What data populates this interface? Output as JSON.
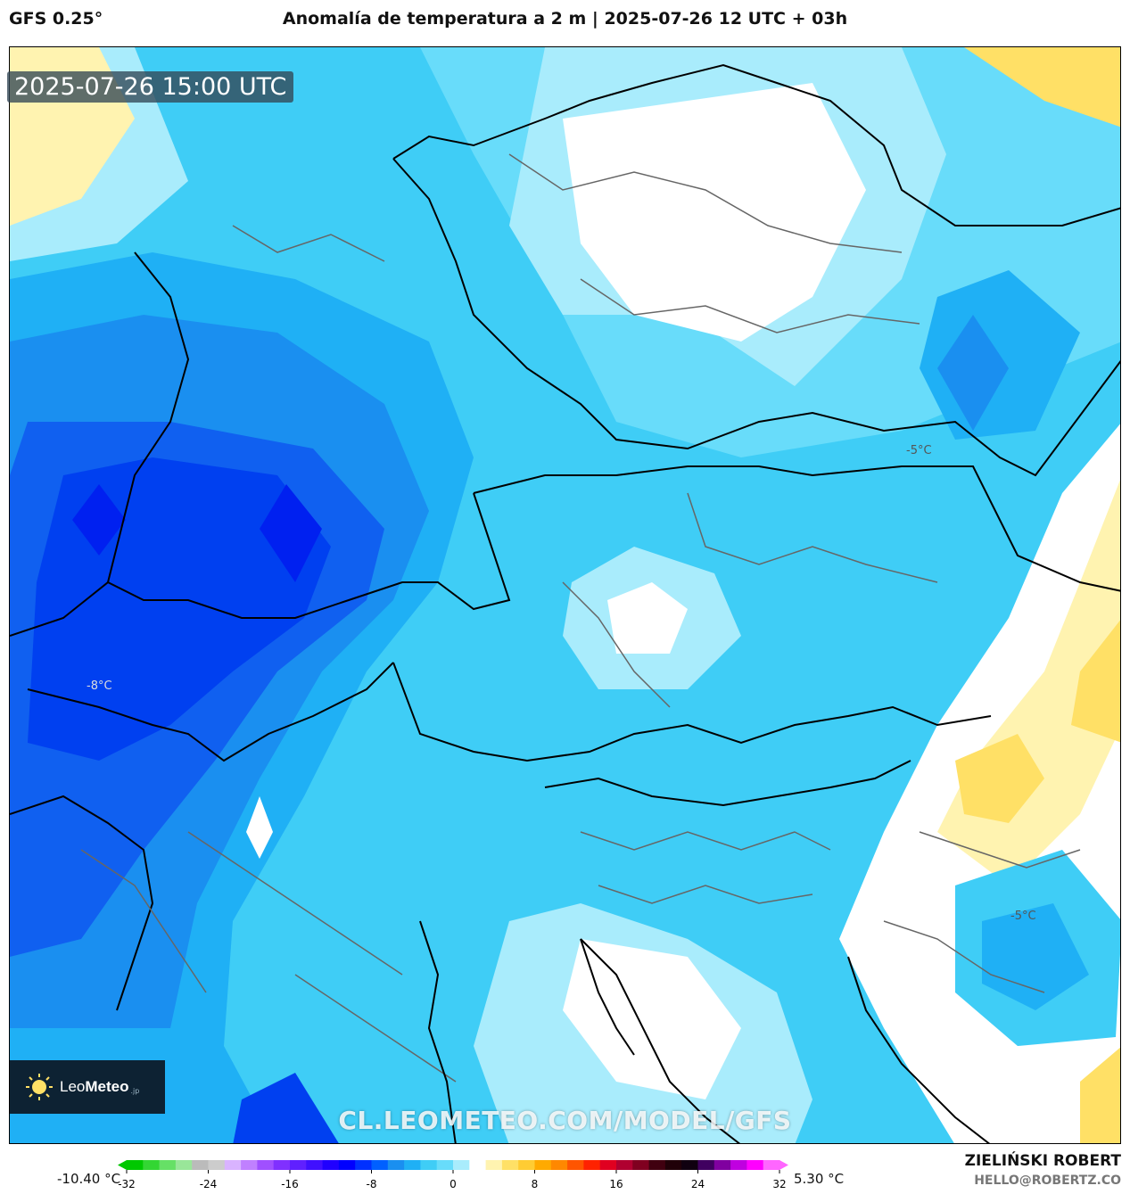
{
  "header": {
    "model": "GFS 0.25°",
    "title": "Anomalía de temperatura a 2 m | 2025-07-26 12 UTC + 03h"
  },
  "timestamp": "2025-07-26 15:00 UTC",
  "map": {
    "contour_labels": [
      "-5°C",
      "-8°C",
      "-5°C"
    ],
    "colors": {
      "deep_blue": "#0020f0",
      "strong_blue": "#1060f0",
      "blue": "#1a8ff0",
      "mid_blue": "#1fb0f5",
      "cyan": "#3fcdf6",
      "light_cyan": "#68dcfa",
      "pale_cyan": "#a9ecfc",
      "white": "#ffffff",
      "pale_yellow": "#fff3b0",
      "yellow": "#ffe066",
      "gold": "#ffcc33"
    }
  },
  "logo": {
    "brand_light": "Leo",
    "brand_bold": "Meteo",
    "suffix": ".jp"
  },
  "watermark": "CL.LEOMETEO.COM/MODEL/GFS",
  "colorbar": {
    "min_label": "-10.40 °C",
    "max_label": "5.30 °C",
    "ticks": [
      "-32",
      "-24",
      "-16",
      "-8",
      "0",
      "8",
      "16",
      "24",
      "32"
    ],
    "tick_values": [
      -32,
      -24,
      -16,
      -8,
      0,
      8,
      16,
      24,
      32
    ],
    "range": [
      -32,
      32
    ],
    "colors": [
      "#00c800",
      "#33d633",
      "#66e066",
      "#99e699",
      "#bbbbbb",
      "#cccccc",
      "#d9b3ff",
      "#c080ff",
      "#a050ff",
      "#8030ff",
      "#6020ff",
      "#4010ff",
      "#2000ff",
      "#0000ff",
      "#0030ff",
      "#0060ff",
      "#1a8ff0",
      "#1fb0f5",
      "#3fcdf6",
      "#68dcfa",
      "#a9ecfc",
      "#ffffff",
      "#fff3b0",
      "#ffe066",
      "#ffcc33",
      "#ffaa00",
      "#ff8800",
      "#ff5500",
      "#ff2200",
      "#e00020",
      "#b00030",
      "#800020",
      "#400010",
      "#200008",
      "#100010",
      "#400060",
      "#8000a0",
      "#c000e0",
      "#ff00ff",
      "#ff66ff"
    ]
  },
  "credits": {
    "author": "ZIELIŃSKI ROBERT",
    "email": "HELLO@ROBERTZ.CO"
  }
}
